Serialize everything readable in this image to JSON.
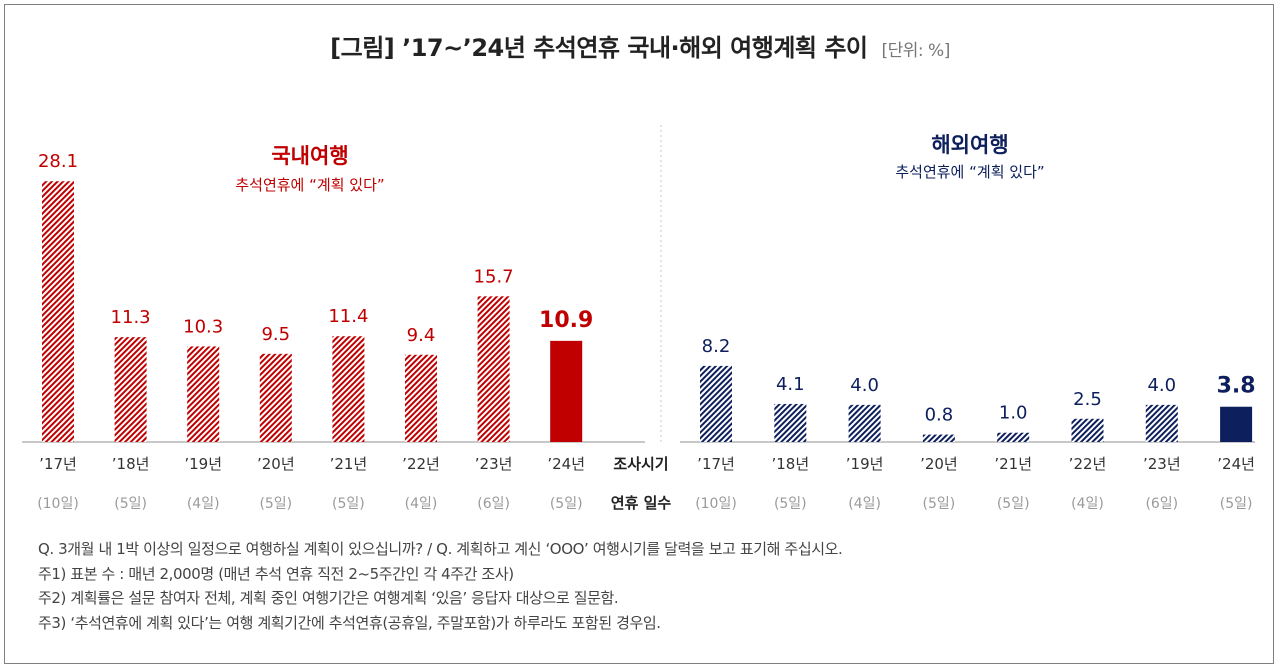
{
  "title": "[그림] ’17~’24년 추석연휴 국내·해외 여행계획 추이",
  "unit": "[단위: %]",
  "row_labels": {
    "survey": "조사시기",
    "days": "연휴 일수"
  },
  "chart_data": [
    {
      "type": "bar",
      "title": "국내여행",
      "subtitle": "추석연휴에 “계획 있다”",
      "categories": [
        "’17년",
        "’18년",
        "’19년",
        "’20년",
        "’21년",
        "’22년",
        "’23년",
        "’24년"
      ],
      "holiday_days": [
        "(10일)",
        "(5일)",
        "(4일)",
        "(5일)",
        "(5일)",
        "(4일)",
        "(6일)",
        "(5일)"
      ],
      "values": [
        28.1,
        11.3,
        10.3,
        9.5,
        11.4,
        9.4,
        15.7,
        10.9
      ],
      "color": "#c00000",
      "highlight_last": true
    },
    {
      "type": "bar",
      "title": "해외여행",
      "subtitle": "추석연휴에 “계획 있다”",
      "categories": [
        "’17년",
        "’18년",
        "’19년",
        "’20년",
        "’21년",
        "’22년",
        "’23년",
        "’24년"
      ],
      "holiday_days": [
        "(10일)",
        "(5일)",
        "(4일)",
        "(5일)",
        "(5일)",
        "(4일)",
        "(6일)",
        "(5일)"
      ],
      "values": [
        8.2,
        4.1,
        4.0,
        0.8,
        1.0,
        2.5,
        4.0,
        3.8
      ],
      "color": "#0d1f5c",
      "highlight_last": true
    }
  ],
  "notes": [
    "Q. 3개월 내 1박 이상의 일정으로 여행하실 계획이 있으십니까? / Q. 계획하고 계신 ‘OOO’ 여행시기를 달력을 보고 표기해 주십시오.",
    "주1) 표본 수 : 매년 2,000명 (매년 추석 연휴 직전 2~5주간인 각 4주간 조사)",
    "주2) 계획률은 설문 참여자 전체, 계획 중인 여행기간은 여행계획 ‘있음’ 응답자 대상으로 질문함.",
    "주3) ‘추석연휴에 계획 있다’는 여행 계획기간에 추석연휴(공휴일, 주말포함)가 하루라도 포함된 경우임."
  ]
}
